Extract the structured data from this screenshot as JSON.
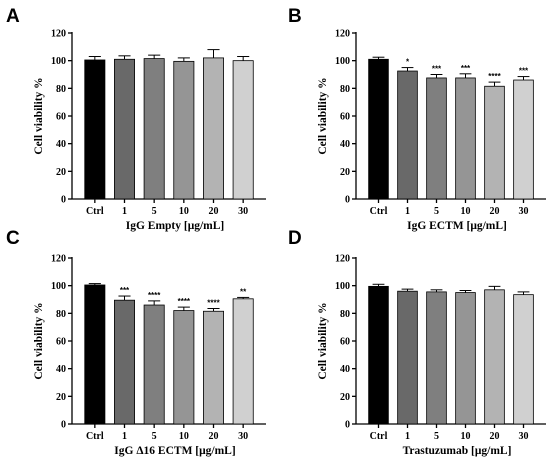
{
  "colors": {
    "bar_fills": [
      "#000000",
      "#696969",
      "#7f7f7f",
      "#959595",
      "#b3b3b3",
      "#d0d0d0"
    ]
  },
  "chart_data": [
    {
      "panel": "A",
      "type": "bar",
      "categories": [
        "Ctrl",
        "1",
        "5",
        "10",
        "20",
        "30"
      ],
      "values": [
        100.5,
        101,
        101.5,
        99.5,
        102,
        100
      ],
      "errors": [
        2.5,
        2.5,
        2.5,
        2.5,
        6,
        3
      ],
      "significance": [
        "",
        "",
        "",
        "",
        "",
        ""
      ],
      "xlabel": "IgG Empty [μg/mL]",
      "ylabel": "Cell viability %",
      "ylim": [
        0,
        120
      ],
      "yticks": [
        0,
        20,
        40,
        60,
        80,
        100,
        120
      ]
    },
    {
      "panel": "B",
      "type": "bar",
      "categories": [
        "Ctrl",
        "1",
        "5",
        "10",
        "20",
        "30"
      ],
      "values": [
        101,
        92.5,
        87.5,
        87.5,
        81.5,
        86
      ],
      "errors": [
        1.5,
        2.5,
        2.5,
        3,
        3,
        2.5
      ],
      "significance": [
        "",
        "*",
        "***",
        "***",
        "****",
        "***"
      ],
      "xlabel": "IgG ECTM [μg/mL]",
      "ylabel": "Cell viability %",
      "ylim": [
        0,
        120
      ],
      "yticks": [
        0,
        20,
        40,
        60,
        80,
        100,
        120
      ]
    },
    {
      "panel": "C",
      "type": "bar",
      "categories": [
        "Ctrl",
        "1",
        "5",
        "10",
        "20",
        "30"
      ],
      "values": [
        100.5,
        89.5,
        86,
        82,
        81.5,
        90.5
      ],
      "errors": [
        1,
        3,
        3,
        2.5,
        2,
        1
      ],
      "significance": [
        "",
        "***",
        "****",
        "****",
        "****",
        "**"
      ],
      "xlabel": "IgG Δ16 ECTM [μg/mL]",
      "ylabel": "Cell viability %",
      "ylim": [
        0,
        120
      ],
      "yticks": [
        0,
        20,
        40,
        60,
        80,
        100,
        120
      ]
    },
    {
      "panel": "D",
      "type": "bar",
      "categories": [
        "Ctrl",
        "1",
        "5",
        "10",
        "20",
        "30"
      ],
      "values": [
        99.5,
        96,
        95.5,
        95,
        97,
        93.5
      ],
      "errors": [
        1.5,
        1.5,
        1.5,
        1.5,
        2.5,
        2
      ],
      "significance": [
        "",
        "",
        "",
        "",
        "",
        ""
      ],
      "xlabel": "Trastuzumab [μg/mL]",
      "ylabel": "Cell viability %",
      "ylim": [
        0,
        120
      ],
      "yticks": [
        0,
        20,
        40,
        60,
        80,
        100,
        120
      ]
    }
  ]
}
